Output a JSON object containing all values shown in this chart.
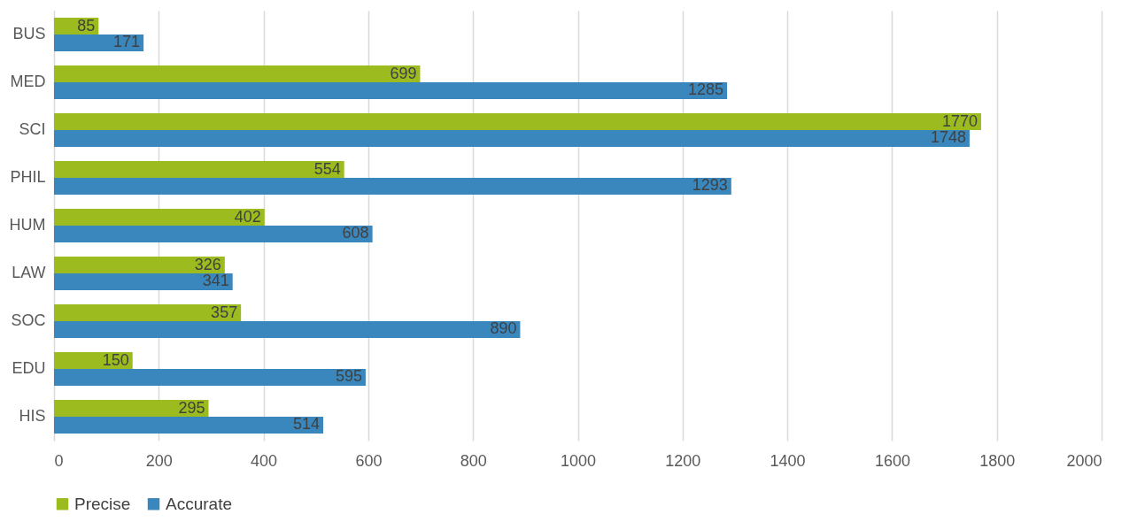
{
  "chart_data": {
    "type": "bar",
    "orientation": "horizontal",
    "categories": [
      "BUS",
      "MED",
      "SCI",
      "PHIL",
      "HUM",
      "LAW",
      "SOC",
      "EDU",
      "HIS"
    ],
    "series": [
      {
        "name": "Precise",
        "color": "#9bbb1f",
        "values": [
          85,
          699,
          1770,
          554,
          402,
          326,
          357,
          150,
          295
        ]
      },
      {
        "name": "Accurate",
        "color": "#3a87bd",
        "values": [
          171,
          1285,
          1748,
          1293,
          608,
          341,
          890,
          595,
          514
        ]
      }
    ],
    "xlim": [
      0,
      2000
    ],
    "xticks": [
      0,
      200,
      400,
      600,
      800,
      1000,
      1200,
      1400,
      1600,
      1800,
      2000
    ],
    "grid": "x",
    "legend": "bottom",
    "data_labels": true
  }
}
